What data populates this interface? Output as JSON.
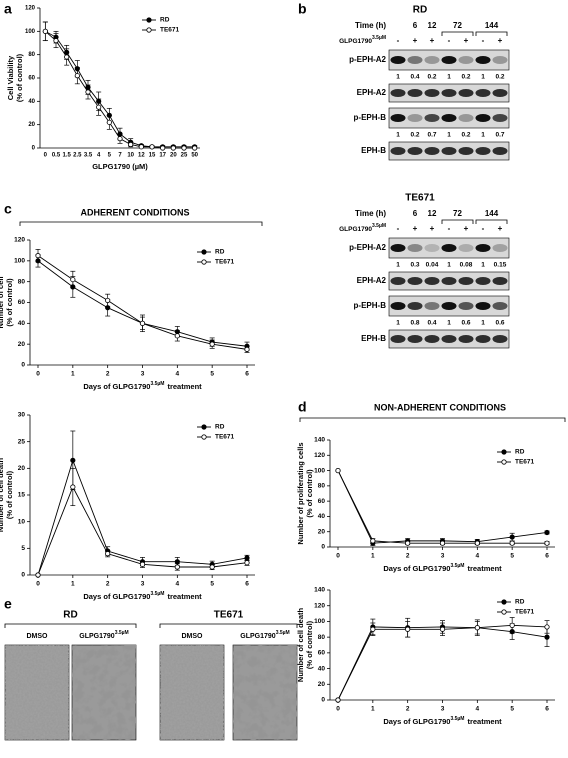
{
  "panels": [
    "a",
    "b",
    "c",
    "d",
    "e"
  ],
  "conditions": {
    "adherent": "ADHERENT CONDITIONS",
    "non_adherent": "NON-ADHERENT CONDITIONS"
  },
  "chart_data": [
    {
      "type": "line",
      "categories": [
        "0",
        "0.5",
        "1.5",
        "2.5",
        "3.5",
        "4",
        "5",
        "7",
        "10",
        "12",
        "15",
        "17",
        "20",
        "25",
        "50"
      ],
      "ylim": [
        0,
        120
      ],
      "yticks": [
        0,
        20,
        40,
        60,
        80,
        100,
        120
      ],
      "ylabel": [
        "Cell Viability",
        "(% of control)"
      ],
      "xlabel": [
        "GLPG1790 (µM)"
      ],
      "legend": "top-right",
      "series": [
        {
          "name": "RD",
          "color": "#000000",
          "marker": "filled",
          "values": [
            100,
            95,
            82,
            68,
            52,
            40,
            28,
            12,
            5,
            2,
            1,
            1,
            1,
            1,
            1
          ],
          "errors": [
            8,
            5,
            6,
            7,
            6,
            8,
            6,
            5,
            3,
            1,
            1,
            1,
            1,
            1,
            1
          ]
        },
        {
          "name": "TE671",
          "color": "#000000",
          "marker": "open",
          "values": [
            100,
            92,
            78,
            62,
            48,
            35,
            22,
            8,
            3,
            1,
            1,
            0,
            0,
            0,
            0
          ],
          "errors": [
            8,
            6,
            7,
            7,
            6,
            7,
            6,
            4,
            2,
            1,
            1,
            0,
            0,
            0,
            0
          ]
        }
      ]
    },
    {
      "type": "line",
      "x": [
        0,
        1,
        2,
        3,
        4,
        5,
        6
      ],
      "xlim": [
        0,
        6
      ],
      "xticks": [
        0,
        1,
        2,
        3,
        4,
        5,
        6
      ],
      "ylim": [
        0,
        120
      ],
      "yticks": [
        0,
        20,
        40,
        60,
        80,
        100,
        120
      ],
      "ylabel": [
        "Number of cell",
        "(% of control)"
      ],
      "xlabel": [
        "Days of GLPG1790",
        "3.5µM",
        "treatment"
      ],
      "legend": "top-right",
      "series": [
        {
          "name": "RD",
          "color": "#000000",
          "marker": "filled",
          "values": [
            100,
            75,
            55,
            40,
            32,
            22,
            18
          ],
          "errors": [
            6,
            10,
            8,
            8,
            5,
            4,
            4
          ]
        },
        {
          "name": "TE671",
          "color": "#000000",
          "marker": "open",
          "values": [
            105,
            82,
            62,
            40,
            28,
            20,
            15
          ],
          "errors": [
            6,
            8,
            6,
            6,
            5,
            4,
            3
          ]
        }
      ]
    },
    {
      "type": "line",
      "x": [
        0,
        1,
        2,
        3,
        4,
        5,
        6
      ],
      "xlim": [
        0,
        6
      ],
      "xticks": [
        0,
        1,
        2,
        3,
        4,
        5,
        6
      ],
      "ylim": [
        0,
        30
      ],
      "yticks": [
        0,
        5,
        10,
        15,
        20,
        25,
        30
      ],
      "ylabel": [
        "Number of cell death",
        "(% of control)"
      ],
      "xlabel": [
        "Days of GLPG1790",
        "3.5µM",
        "treatment"
      ],
      "legend": "top-right",
      "series": [
        {
          "name": "RD",
          "color": "#000000",
          "marker": "filled",
          "values": [
            0,
            21.5,
            4.5,
            2.5,
            2.5,
            2,
            3.2
          ],
          "errors": [
            0,
            5.5,
            0.8,
            0.8,
            0.8,
            0.6,
            0.5
          ]
        },
        {
          "name": "TE671",
          "color": "#000000",
          "marker": "open",
          "values": [
            0,
            16.5,
            4,
            2,
            1.5,
            1.5,
            2.3
          ],
          "errors": [
            0,
            3.5,
            0.6,
            0.6,
            0.6,
            0.5,
            0.5
          ]
        }
      ]
    },
    {
      "type": "line",
      "x": [
        0,
        1,
        2,
        3,
        4,
        5,
        6
      ],
      "xlim": [
        0,
        6
      ],
      "xticks": [
        0,
        1,
        2,
        3,
        4,
        5,
        6
      ],
      "ylim": [
        0,
        140
      ],
      "yticks": [
        0,
        20,
        40,
        60,
        80,
        100,
        120,
        140
      ],
      "ylabel": [
        "Number of proliferating cells",
        "(% of control)"
      ],
      "xlabel": [
        "Days of GLPG1790",
        "3.5µM",
        "treatment"
      ],
      "legend": "top-right",
      "series": [
        {
          "name": "RD",
          "color": "#000000",
          "marker": "filled",
          "values": [
            100,
            5,
            8,
            8,
            7,
            13,
            19
          ],
          "errors": [
            0,
            3,
            3,
            3,
            3,
            5,
            2
          ]
        },
        {
          "name": "TE671",
          "color": "#000000",
          "marker": "open",
          "values": [
            100,
            8,
            5,
            5,
            5,
            5,
            5
          ],
          "errors": [
            0,
            3,
            2,
            2,
            2,
            2,
            2
          ]
        }
      ]
    },
    {
      "type": "line",
      "x": [
        0,
        1,
        2,
        3,
        4,
        5,
        6
      ],
      "xlim": [
        0,
        6
      ],
      "xticks": [
        0,
        1,
        2,
        3,
        4,
        5,
        6
      ],
      "ylim": [
        0,
        140
      ],
      "yticks": [
        0,
        20,
        40,
        60,
        80,
        100,
        120,
        140
      ],
      "ylabel": [
        "Number of cell death",
        "(% of control)"
      ],
      "xlabel": [
        "Days of GLPG1790",
        "3.5µM",
        "treatment"
      ],
      "legend": "top-right",
      "series": [
        {
          "name": "RD",
          "color": "#000000",
          "marker": "filled",
          "values": [
            0,
            93,
            92,
            93,
            92,
            87,
            80
          ],
          "errors": [
            0,
            10,
            12,
            8,
            10,
            10,
            12
          ]
        },
        {
          "name": "TE671",
          "color": "#000000",
          "marker": "open",
          "values": [
            0,
            90,
            90,
            90,
            92,
            95,
            93
          ],
          "errors": [
            0,
            8,
            10,
            8,
            8,
            10,
            8
          ]
        }
      ]
    }
  ],
  "blots": [
    {
      "title": "RD",
      "time_label": "Time (h)",
      "times": [
        6,
        12,
        72,
        144
      ],
      "treatment": [
        "GLPG1790",
        "3.5µM"
      ],
      "signs": [
        "-",
        "+",
        "+",
        "-",
        "+",
        "-",
        "+"
      ],
      "rows": [
        {
          "label": "p-EPH-A2",
          "quant": [
            1,
            0.4,
            0.2,
            1,
            0.2,
            1,
            0.2
          ]
        },
        {
          "label": "EPH-A2"
        },
        {
          "label": "p-EPH-B",
          "quant": [
            1,
            0.2,
            0.7,
            1,
            0.2,
            1,
            0.7
          ]
        },
        {
          "label": "EPH-B"
        }
      ]
    },
    {
      "title": "TE671",
      "time_label": "Time (h)",
      "times": [
        6,
        12,
        72,
        144
      ],
      "treatment": [
        "GLPG1790",
        "3.5µM"
      ],
      "signs": [
        "-",
        "+",
        "+",
        "-",
        "+",
        "-",
        "+"
      ],
      "rows": [
        {
          "label": "p-EPH-A2",
          "quant": [
            1,
            0.3,
            0.04,
            1,
            0.08,
            1,
            0.15
          ]
        },
        {
          "label": "EPH-A2"
        },
        {
          "label": "p-EPH-B",
          "quant": [
            1,
            0.8,
            0.4,
            1,
            0.6,
            1,
            0.6
          ]
        },
        {
          "label": "EPH-B"
        }
      ]
    }
  ],
  "micrographs": {
    "groups": [
      "RD",
      "TE671"
    ],
    "vehicle": "DMSO",
    "treatment": [
      "GLPG1790",
      "3.5µM"
    ]
  }
}
